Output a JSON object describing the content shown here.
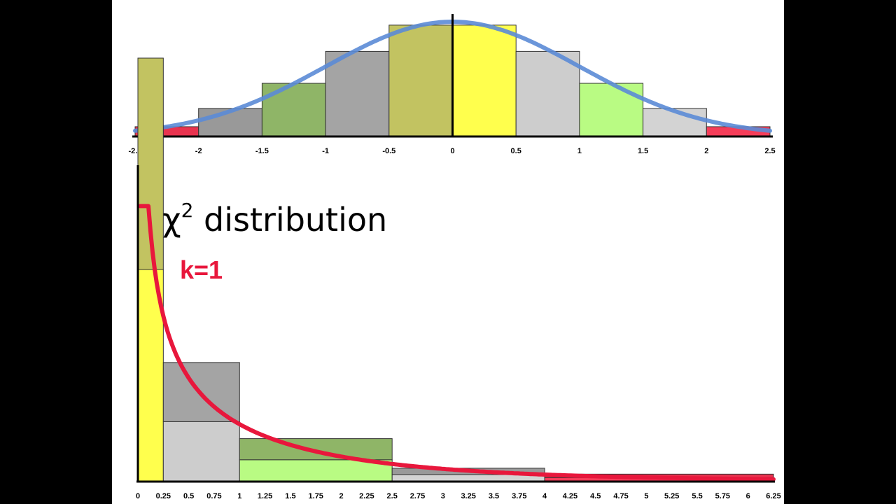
{
  "chart_data": [
    {
      "type": "bar",
      "chart": "normal-histogram",
      "x_ticks": [
        "-2.5",
        "-2",
        "-1.5",
        "-1",
        "-0.5",
        "0",
        "0.5",
        "1",
        "1.5",
        "2",
        "2.5"
      ],
      "xlim": [
        -2.5,
        2.5
      ],
      "ylim": [
        0,
        1
      ],
      "bins": [
        {
          "x0": -2.5,
          "x1": -2.0,
          "value": 0.08,
          "color": "#e8334f"
        },
        {
          "x0": -2.0,
          "x1": -1.5,
          "value": 0.24,
          "color": "#999999"
        },
        {
          "x0": -1.5,
          "x1": -1.0,
          "value": 0.46,
          "color": "#8fb567"
        },
        {
          "x0": -1.0,
          "x1": -0.5,
          "value": 0.74,
          "color": "#a4a4a4"
        },
        {
          "x0": -0.5,
          "x1": 0.0,
          "value": 0.97,
          "color": "#c2c361"
        },
        {
          "x0": 0.0,
          "x1": 0.5,
          "value": 0.97,
          "color": "#ffff4d"
        },
        {
          "x0": 0.5,
          "x1": 1.0,
          "value": 0.74,
          "color": "#cdcdcd"
        },
        {
          "x0": 1.0,
          "x1": 1.5,
          "value": 0.46,
          "color": "#b9fb83"
        },
        {
          "x0": 1.5,
          "x1": 2.0,
          "value": 0.24,
          "color": "#d3d3d3"
        },
        {
          "x0": 2.0,
          "x1": 2.5,
          "value": 0.08,
          "color": "#f53d59"
        }
      ],
      "curve": {
        "kind": "normal",
        "mean": 0,
        "sd": 1,
        "peak": 1.0,
        "color": "#5b8bd6"
      }
    },
    {
      "type": "bar",
      "chart": "chi-square-histogram",
      "title": "χ",
      "title_superscript": "2",
      "title_suffix": " distribution",
      "annotation": "k=1",
      "x_ticks": [
        "0",
        "0.25",
        "0.5",
        "0.75",
        "1",
        "1.25",
        "1.5",
        "1.75",
        "2",
        "2.25",
        "2.5",
        "2.75",
        "3",
        "3.25",
        "3.5",
        "3.75",
        "4",
        "4.25",
        "4.5",
        "4.75",
        "5",
        "5.25",
        "5.5",
        "5.75",
        "6",
        "6.25"
      ],
      "xlim": [
        0,
        6.25
      ],
      "ylim": [
        0,
        1
      ],
      "bins": [
        {
          "x0": 0,
          "x1": 0.25,
          "stack": [
            {
              "value": 0.5,
              "color": "#ffff4d"
            },
            {
              "value": 0.5,
              "color": "#c2c361"
            }
          ]
        },
        {
          "x0": 0.25,
          "x1": 1.0,
          "stack": [
            {
              "value": 0.14,
              "color": "#cdcdcd"
            },
            {
              "value": 0.14,
              "color": "#a4a4a4"
            }
          ]
        },
        {
          "x0": 1.0,
          "x1": 2.5,
          "stack": [
            {
              "value": 0.05,
              "color": "#b9fb83"
            },
            {
              "value": 0.05,
              "color": "#8fb567"
            }
          ]
        },
        {
          "x0": 2.5,
          "x1": 4.0,
          "stack": [
            {
              "value": 0.015,
              "color": "#d3d3d3"
            },
            {
              "value": 0.015,
              "color": "#999999"
            }
          ]
        },
        {
          "x0": 4.0,
          "x1": 6.25,
          "stack": [
            {
              "value": 0.008,
              "color": "#f53d59"
            },
            {
              "value": 0.008,
              "color": "#e8334f"
            }
          ]
        }
      ],
      "curve": {
        "kind": "chi2",
        "df": 1,
        "color": "#e8173c"
      }
    }
  ]
}
